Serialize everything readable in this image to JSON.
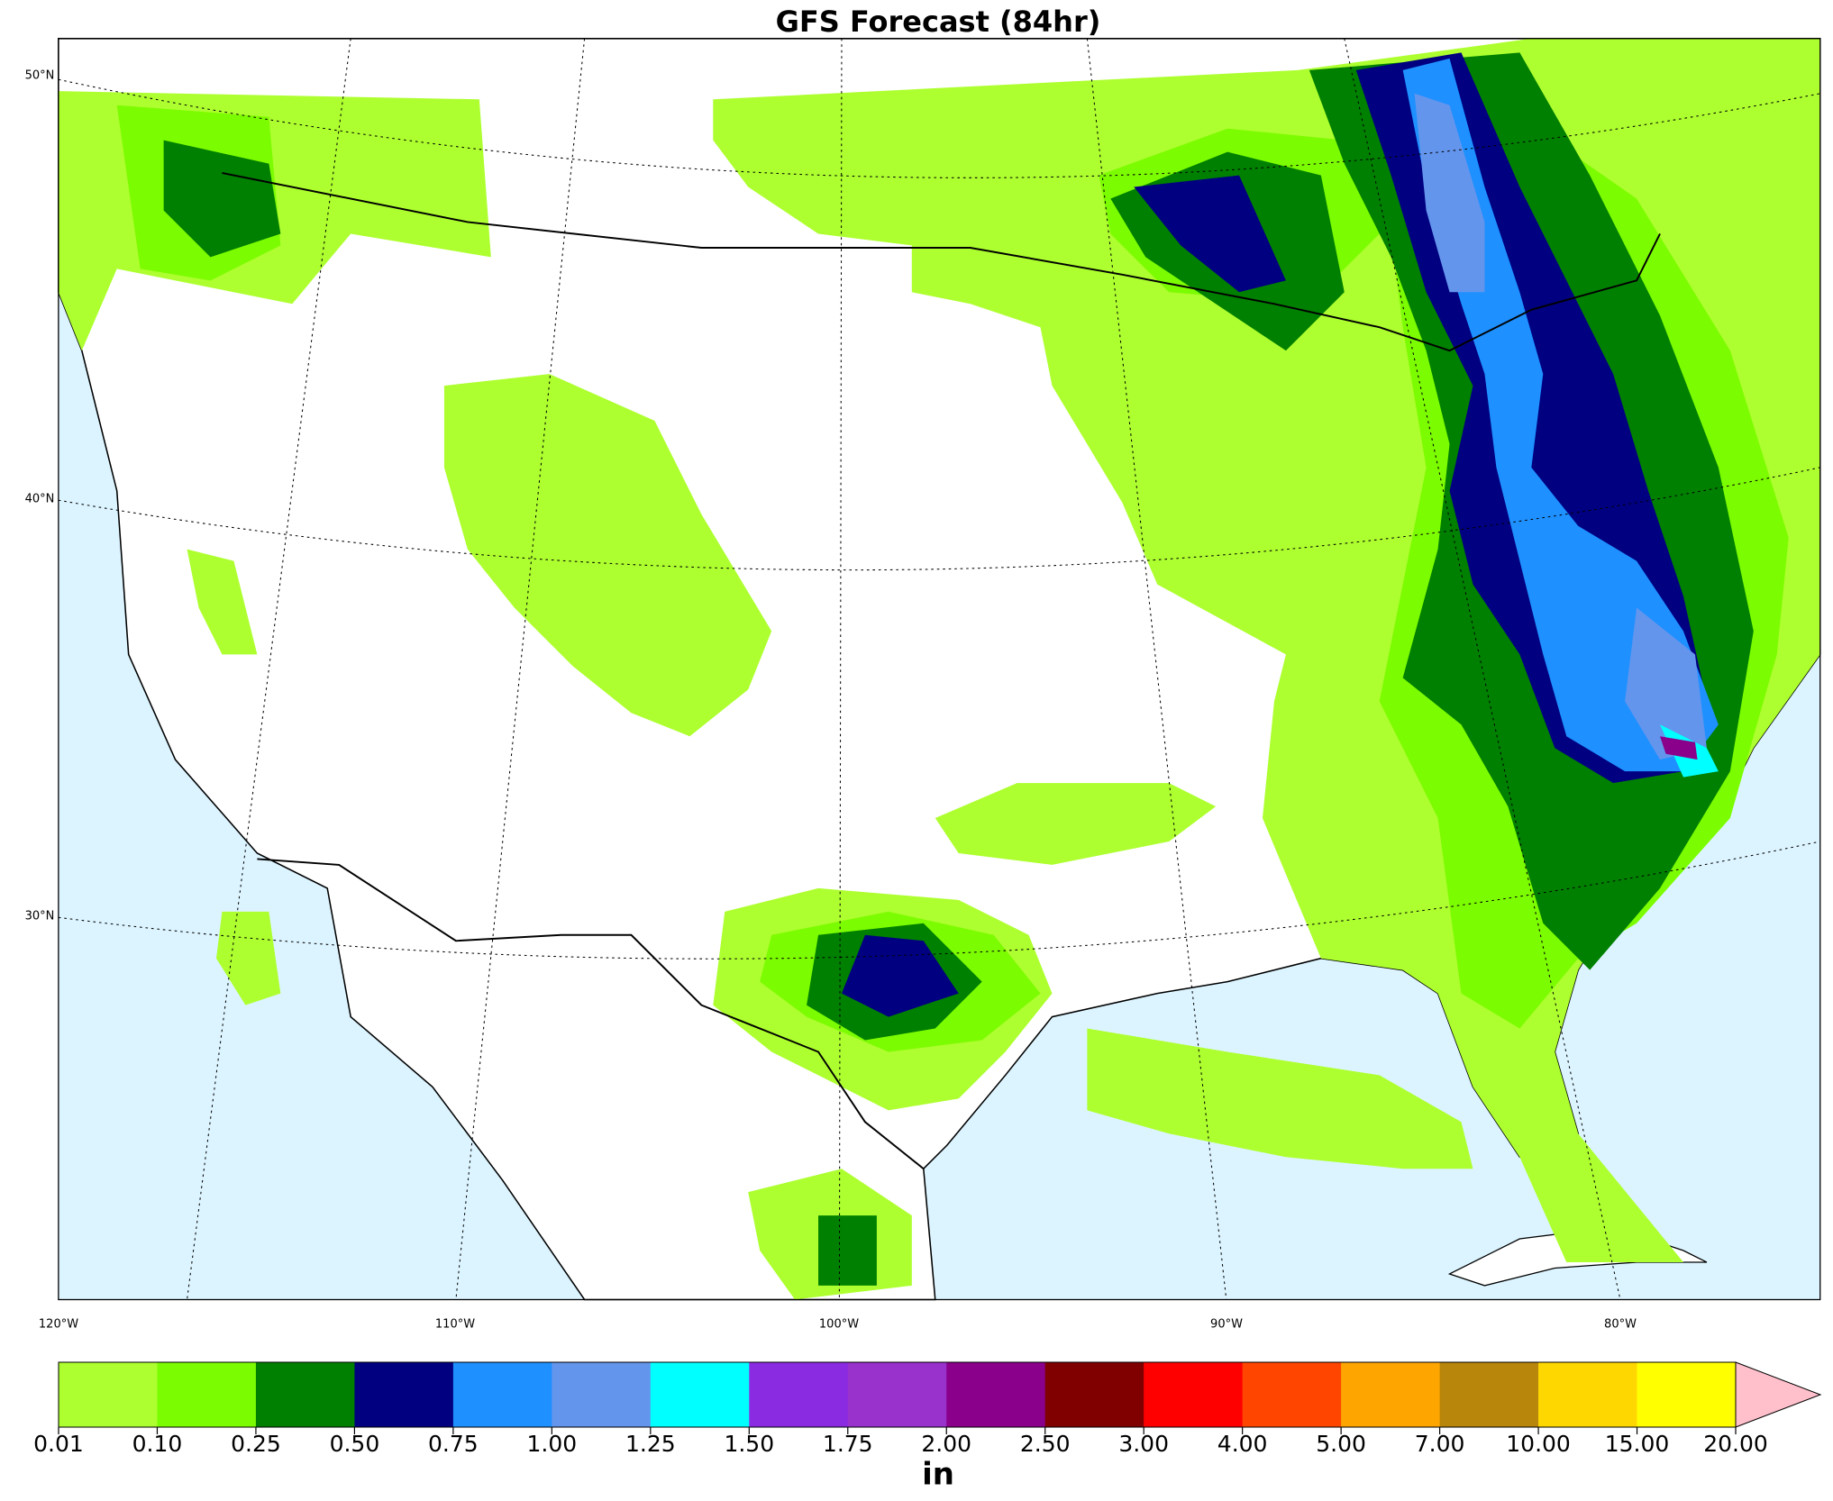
{
  "title": "GFS Forecast (84hr)",
  "map": {
    "lat_labels": [
      "50°N",
      "40°N",
      "30°N"
    ],
    "lon_labels": [
      "120°W",
      "110°W",
      "100°W",
      "90°W",
      "80°W"
    ]
  },
  "colorbar": {
    "label": "in",
    "ticks": [
      {
        "value": 0.01,
        "label": "0.01"
      },
      {
        "value": 0.1,
        "label": "0.10"
      },
      {
        "value": 0.25,
        "label": "0.25"
      },
      {
        "value": 0.5,
        "label": "0.50"
      },
      {
        "value": 0.75,
        "label": "0.75"
      },
      {
        "value": 1,
        "label": "1.00"
      },
      {
        "value": 1.25,
        "label": "1.25"
      },
      {
        "value": 1.5,
        "label": "1.50"
      },
      {
        "value": 1.75,
        "label": "1.75"
      },
      {
        "value": 2,
        "label": "2.00"
      },
      {
        "value": 2.5,
        "label": "2.50"
      },
      {
        "value": 3,
        "label": "3.00"
      },
      {
        "value": 4,
        "label": "4.00"
      },
      {
        "value": 5,
        "label": "5.00"
      },
      {
        "value": 7,
        "label": "7.00"
      },
      {
        "value": 10,
        "label": "10.00"
      },
      {
        "value": 15,
        "label": "15.00"
      },
      {
        "value": 20,
        "label": "20.00"
      }
    ],
    "colors": [
      "#adff2f",
      "#7cfc00",
      "#008000",
      "#000080",
      "#1e90ff",
      "#6495ed",
      "#00ffff",
      "#8a2be2",
      "#9932cc",
      "#8b008b",
      "#800000",
      "#ff0000",
      "#ff4500",
      "#ffa500",
      "#b8860b",
      "#ffd700",
      "#ffff00"
    ],
    "extend_color": "#ffc0cb"
  }
}
